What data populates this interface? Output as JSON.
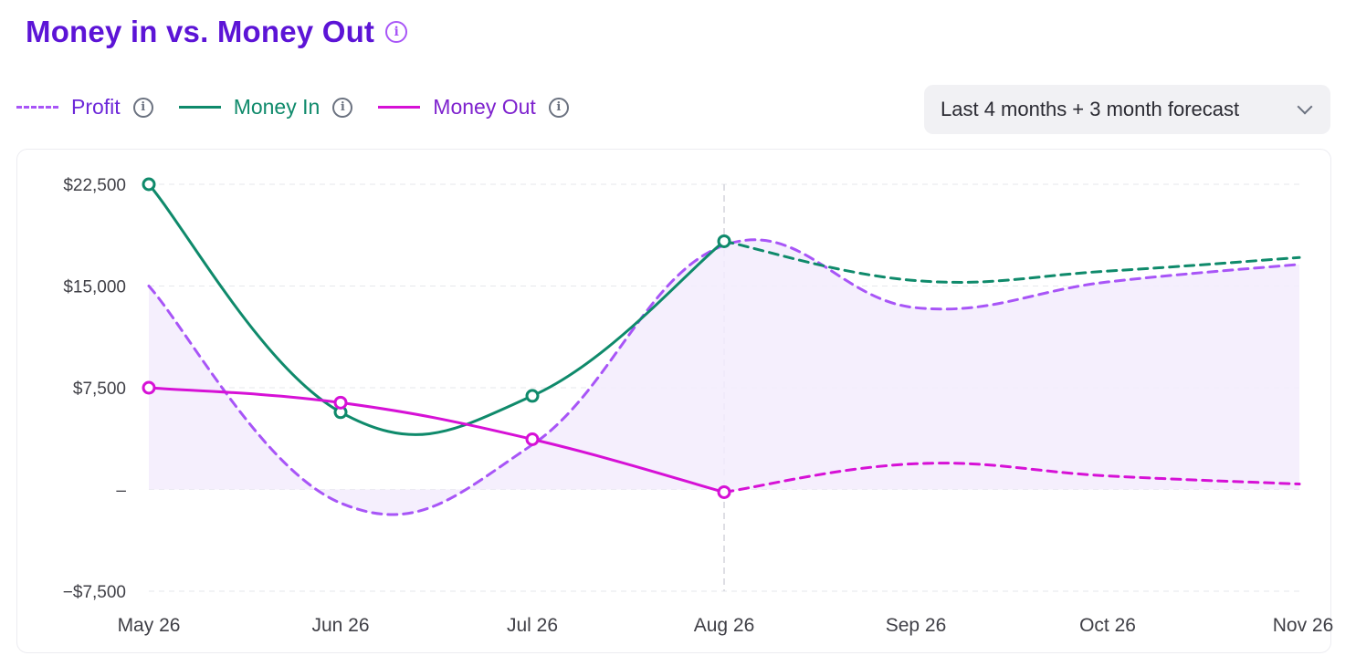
{
  "header": {
    "title": "Money in vs. Money Out"
  },
  "range_select": {
    "value": "Last 4 months + 3 month forecast"
  },
  "colors": {
    "title": "#5c14d6",
    "profit": "#a855f7",
    "money_in": "#0f8a6b",
    "money_out": "#d611d6",
    "fill": "#f3ecfd",
    "grid": "#e5e7eb"
  },
  "chart_data": {
    "type": "line",
    "categories": [
      "May 26",
      "Jun 26",
      "Jul 26",
      "Aug 26",
      "Sep 26",
      "Oct 26",
      "Nov 26"
    ],
    "y_ticks": [
      {
        "value": 22500,
        "label": "$22,500"
      },
      {
        "value": 15000,
        "label": "$15,000"
      },
      {
        "value": 7500,
        "label": "$7,500"
      },
      {
        "value": 0,
        "label": "–"
      },
      {
        "value": -7500,
        "label": "−$7,500"
      }
    ],
    "ylim": [
      -7500,
      22500
    ],
    "grid": true,
    "legend_position": "top-left",
    "forecast_start_index": 3,
    "series": [
      {
        "name": "Profit",
        "style": "dashed",
        "area_fill": true,
        "values": [
          15000,
          -1000,
          3300,
          18000,
          13400,
          15300,
          16600
        ]
      },
      {
        "name": "Money In",
        "style": "solid",
        "values": [
          22500,
          5700,
          6900,
          18300,
          15400,
          16100,
          17100
        ]
      },
      {
        "name": "Money Out",
        "style": "solid",
        "values": [
          7500,
          6400,
          3700,
          -200,
          1900,
          1000,
          400
        ]
      }
    ]
  }
}
